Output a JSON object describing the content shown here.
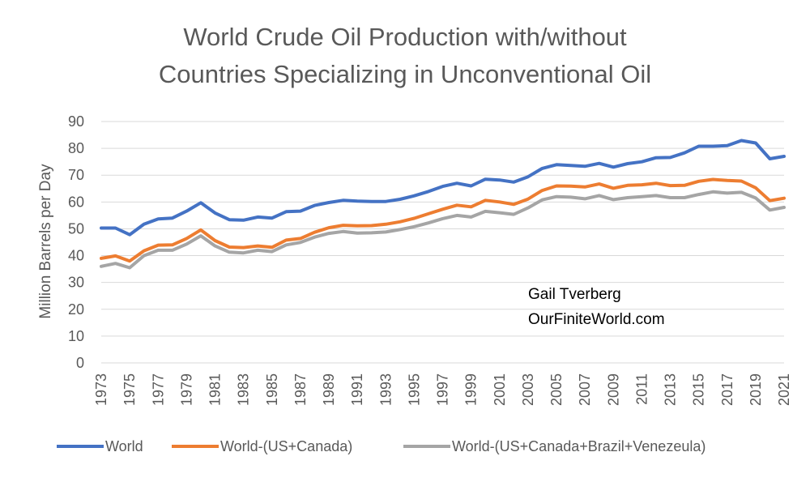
{
  "chart_data": {
    "type": "line",
    "title": [
      "World Crude Oil Production with/without",
      "Countries Specializing in Unconventional Oil"
    ],
    "ylabel": "Million Barrels per Day",
    "xlabel": "",
    "ylim": [
      0,
      90
    ],
    "yticks": [
      0,
      10,
      20,
      30,
      40,
      50,
      60,
      70,
      80,
      90
    ],
    "grid": true,
    "legend": "bottom",
    "x": [
      1973,
      1974,
      1975,
      1976,
      1977,
      1978,
      1979,
      1980,
      1981,
      1982,
      1983,
      1984,
      1985,
      1986,
      1987,
      1988,
      1989,
      1990,
      1991,
      1992,
      1993,
      1994,
      1995,
      1996,
      1997,
      1998,
      1999,
      2000,
      2001,
      2002,
      2003,
      2004,
      2005,
      2006,
      2007,
      2008,
      2009,
      2010,
      2011,
      2012,
      2013,
      2014,
      2015,
      2016,
      2017,
      2018,
      2019,
      2020,
      2021
    ],
    "xtick_labels": [
      "1973",
      "1975",
      "1977",
      "1979",
      "1981",
      "1983",
      "1985",
      "1987",
      "1989",
      "1991",
      "1993",
      "1995",
      "1997",
      "1999",
      "2001",
      "2003",
      "2005",
      "2007",
      "2009",
      "2011",
      "2013",
      "2015",
      "2017",
      "2019",
      "2021"
    ],
    "series": [
      {
        "name": "World",
        "color": "#4472c4",
        "values": [
          50.3,
          50.3,
          47.8,
          51.7,
          53.7,
          54.0,
          56.6,
          59.7,
          55.9,
          53.4,
          53.2,
          54.4,
          54.0,
          56.4,
          56.6,
          58.7,
          59.8,
          60.6,
          60.3,
          60.2,
          60.2,
          61.0,
          62.3,
          63.9,
          65.8,
          67.0,
          66.0,
          68.5,
          68.2,
          67.4,
          69.4,
          72.5,
          73.9,
          73.6,
          73.3,
          74.4,
          73.0,
          74.3,
          75.0,
          76.5,
          76.6,
          78.3,
          80.8,
          80.8,
          81.0,
          82.9,
          82.0,
          76.1,
          77.0
        ]
      },
      {
        "name": "World-(US+Canada)",
        "color": "#ed7d31",
        "values": [
          39.0,
          39.9,
          38.0,
          41.8,
          43.9,
          44.0,
          46.4,
          49.6,
          45.6,
          43.2,
          43.0,
          43.6,
          43.1,
          45.8,
          46.4,
          48.7,
          50.4,
          51.3,
          51.1,
          51.2,
          51.7,
          52.6,
          53.9,
          55.6,
          57.3,
          58.8,
          58.2,
          60.6,
          60.0,
          59.1,
          61.1,
          64.3,
          66.0,
          65.9,
          65.6,
          66.7,
          65.1,
          66.2,
          66.4,
          67.0,
          66.1,
          66.2,
          67.7,
          68.4,
          68.0,
          67.8,
          65.3,
          60.5,
          61.4
        ]
      },
      {
        "name": "World-(US+Canada+Brazil+Venezeula)",
        "color": "#a5a5a5",
        "values": [
          36.0,
          37.1,
          35.5,
          40.0,
          42.0,
          42.0,
          44.3,
          47.4,
          43.6,
          41.3,
          41.0,
          42.0,
          41.5,
          44.0,
          44.9,
          46.9,
          48.3,
          49.0,
          48.4,
          48.5,
          48.8,
          49.7,
          50.8,
          52.2,
          53.8,
          55.0,
          54.4,
          56.5,
          56.0,
          55.4,
          57.8,
          60.8,
          62.0,
          61.8,
          61.2,
          62.4,
          60.9,
          61.6,
          62.0,
          62.4,
          61.6,
          61.6,
          62.8,
          63.8,
          63.3,
          63.6,
          61.5,
          57.0,
          58.0
        ]
      }
    ],
    "annotations": [
      "Gail Tverberg",
      "OurFiniteWorld.com"
    ]
  }
}
